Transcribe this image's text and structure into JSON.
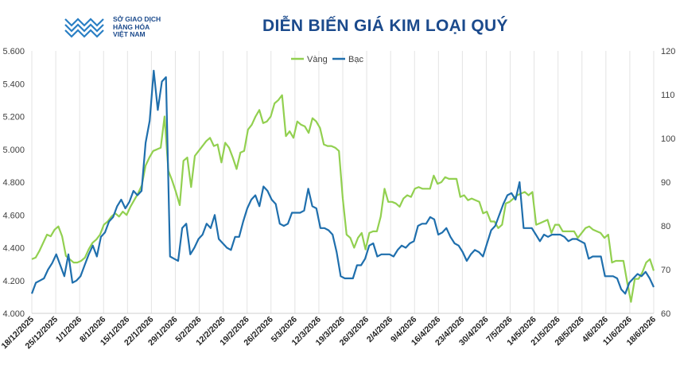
{
  "header": {
    "logo_line1": "SỞ GIAO DỊCH",
    "logo_line2": "HÀNG HÓA",
    "logo_line3": "VIỆT NAM",
    "title": "DIỄN BIẾN GIÁ KIM LOẠI QUÝ"
  },
  "chart_data": {
    "type": "line",
    "title": "DIỄN BIẾN GIÁ KIM LOẠI QUÝ",
    "legend_position": "top-center",
    "grid": "vertical",
    "y_left": {
      "ticks": [
        "4.000",
        "4.200",
        "4.400",
        "4.600",
        "4.800",
        "5.000",
        "5.200",
        "5.400",
        "5.600"
      ],
      "ylim": [
        4000,
        5600
      ]
    },
    "y_right": {
      "ticks": [
        "60",
        "70",
        "80",
        "90",
        "100",
        "110",
        "120"
      ],
      "ylim": [
        60,
        120
      ]
    },
    "x_labels": [
      "18/12/2025",
      "25/12/2025",
      "1/1/2026",
      "8/1/2026",
      "15/1/2026",
      "22/1/2026",
      "29/1/2026",
      "5/2/2026",
      "12/2/2026",
      "19/2/2026",
      "26/2/2026",
      "5/3/2026",
      "12/3/2026",
      "19/3/2026",
      "26/3/2026",
      "2/4/2026",
      "9/4/2026",
      "16/4/2026",
      "23/4/2026",
      "30/4/2026",
      "7/5/2026",
      "14/5/2026",
      "21/5/2026",
      "28/5/2026",
      "4/6/2026",
      "11/6/2026",
      "18/6/2026"
    ],
    "series": [
      {
        "name": "Vàng",
        "axis": "left",
        "color": "#92d050",
        "values": [
          4330,
          4340,
          4380,
          4430,
          4480,
          4470,
          4510,
          4530,
          4470,
          4350,
          4330,
          4310,
          4310,
          4320,
          4340,
          4390,
          4430,
          4450,
          4480,
          4540,
          4560,
          4590,
          4610,
          4590,
          4620,
          4600,
          4650,
          4690,
          4730,
          4780,
          4900,
          4950,
          4990,
          5000,
          5010,
          5200,
          4870,
          4810,
          4740,
          4660,
          4930,
          4950,
          4770,
          4960,
          4990,
          5020,
          5050,
          5070,
          5020,
          5030,
          4920,
          5040,
          5010,
          4950,
          4880,
          4980,
          4990,
          5120,
          5150,
          5200,
          5240,
          5160,
          5170,
          5200,
          5280,
          5300,
          5330,
          5080,
          5110,
          5070,
          5170,
          5150,
          5140,
          5100,
          5190,
          5170,
          5130,
          5030,
          5020,
          5020,
          5010,
          4990,
          4700,
          4480,
          4460,
          4400,
          4460,
          4490,
          4390,
          4490,
          4500,
          4500,
          4590,
          4760,
          4680,
          4680,
          4670,
          4650,
          4700,
          4720,
          4710,
          4760,
          4770,
          4760,
          4760,
          4760,
          4840,
          4790,
          4800,
          4830,
          4820,
          4820,
          4820,
          4710,
          4720,
          4690,
          4700,
          4690,
          4680,
          4610,
          4620,
          4560,
          4560,
          4520,
          4540,
          4670,
          4680,
          4700,
          4720,
          4730,
          4740,
          4720,
          4740,
          4540,
          4550,
          4560,
          4570,
          4490,
          4540,
          4540,
          4500,
          4500,
          4500,
          4500,
          4460,
          4490,
          4520,
          4530,
          4510,
          4500,
          4490,
          4460,
          4480,
          4310,
          4320,
          4320,
          4320,
          4190,
          4070,
          4210,
          4210,
          4250,
          4310,
          4330,
          4260
        ]
      },
      {
        "name": "Bạc",
        "axis": "right",
        "color": "#1f6fad",
        "values": [
          64.5,
          67.0,
          67.5,
          68.0,
          70.0,
          71.5,
          73.5,
          71.0,
          68.5,
          73.5,
          67.0,
          67.5,
          68.5,
          71.0,
          73.5,
          75.5,
          73.0,
          77.5,
          78.5,
          81.0,
          82.0,
          84.5,
          86.0,
          84.0,
          85.5,
          88.0,
          87.0,
          88.0,
          99.0,
          104.0,
          115.5,
          106.5,
          113.0,
          114.0,
          73.0,
          72.5,
          72.0,
          79.5,
          80.5,
          73.5,
          75.0,
          77.0,
          78.0,
          80.5,
          79.5,
          82.5,
          77.0,
          76.0,
          75.0,
          74.5,
          77.5,
          77.5,
          81.0,
          84.0,
          86.0,
          87.0,
          84.5,
          89.0,
          88.0,
          86.0,
          85.0,
          80.5,
          80.0,
          80.5,
          83.0,
          83.0,
          83.0,
          83.5,
          88.5,
          84.5,
          84.0,
          79.5,
          79.5,
          79.0,
          78.0,
          74.0,
          68.5,
          68.0,
          68.0,
          68.0,
          71.0,
          71.0,
          72.5,
          75.5,
          76.0,
          73.0,
          73.5,
          73.5,
          73.5,
          73.0,
          74.5,
          75.5,
          75.0,
          76.0,
          76.5,
          80.0,
          80.5,
          80.5,
          82.0,
          81.5,
          78.0,
          78.5,
          79.5,
          77.5,
          76.0,
          75.5,
          74.0,
          72.0,
          73.5,
          74.5,
          74.0,
          73.0,
          76.0,
          79.0,
          80.0,
          82.5,
          85.0,
          87.0,
          87.5,
          86.0,
          90.0,
          79.5,
          79.5,
          79.5,
          78.0,
          76.5,
          78.0,
          77.5,
          78.0,
          78.0,
          78.0,
          77.5,
          76.5,
          77.0,
          77.0,
          76.5,
          76.0,
          72.5,
          73.0,
          73.0,
          73.0,
          68.5,
          68.5,
          68.5,
          68.0,
          65.5,
          64.5,
          67.0,
          68.0,
          69.0,
          68.5,
          69.5,
          68.0,
          66.0
        ]
      }
    ]
  }
}
